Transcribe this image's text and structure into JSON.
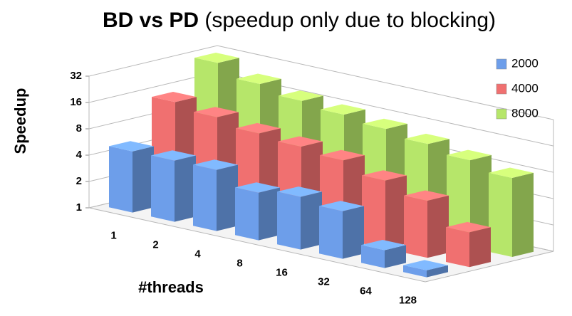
{
  "chart_data": {
    "type": "bar3d",
    "title": "BD vs PD",
    "subtitle": "(speedup only due to blocking)",
    "x_label": "#threads",
    "y_label": "Speedup",
    "categories": [
      "1",
      "2",
      "4",
      "8",
      "16",
      "32",
      "64",
      "128"
    ],
    "series": [
      {
        "name": "2000",
        "color": "#6d9eea",
        "values": [
          5,
          5,
          5,
          3.5,
          4,
          3.5,
          1.6,
          1.2
        ]
      },
      {
        "name": "4000",
        "color": "#f07070",
        "values": [
          14,
          12,
          10,
          9,
          8,
          6,
          4.5,
          2.5
        ]
      },
      {
        "name": "8000",
        "color": "#b6e66a",
        "values": [
          30,
          22,
          18,
          16,
          14,
          12,
          10,
          8
        ]
      }
    ],
    "y_scale": "log2",
    "ylim": [
      1,
      32
    ],
    "yticks": [
      1,
      2,
      4,
      8,
      16,
      32
    ],
    "grid": true,
    "legend": "top-right"
  }
}
